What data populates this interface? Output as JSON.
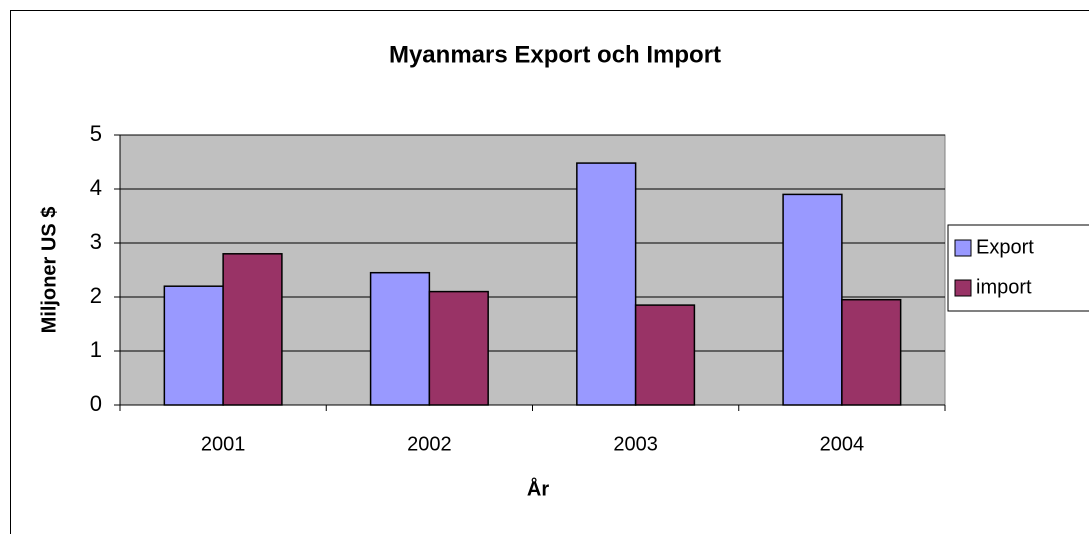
{
  "chart_data": {
    "type": "bar",
    "title": "Myanmars Export och Import",
    "xlabel": "År",
    "ylabel": "Miljoner US $",
    "categories": [
      "2001",
      "2002",
      "2003",
      "2004"
    ],
    "series": [
      {
        "name": "Export",
        "color": "#9999ff",
        "values": [
          2.2,
          2.45,
          4.48,
          3.9
        ]
      },
      {
        "name": "import",
        "color": "#993366",
        "values": [
          2.8,
          2.1,
          1.85,
          1.95
        ]
      }
    ],
    "ylim": [
      0,
      5
    ],
    "yticks": [
      0,
      1,
      2,
      3,
      4,
      5
    ],
    "grid": true,
    "legend": "right"
  }
}
